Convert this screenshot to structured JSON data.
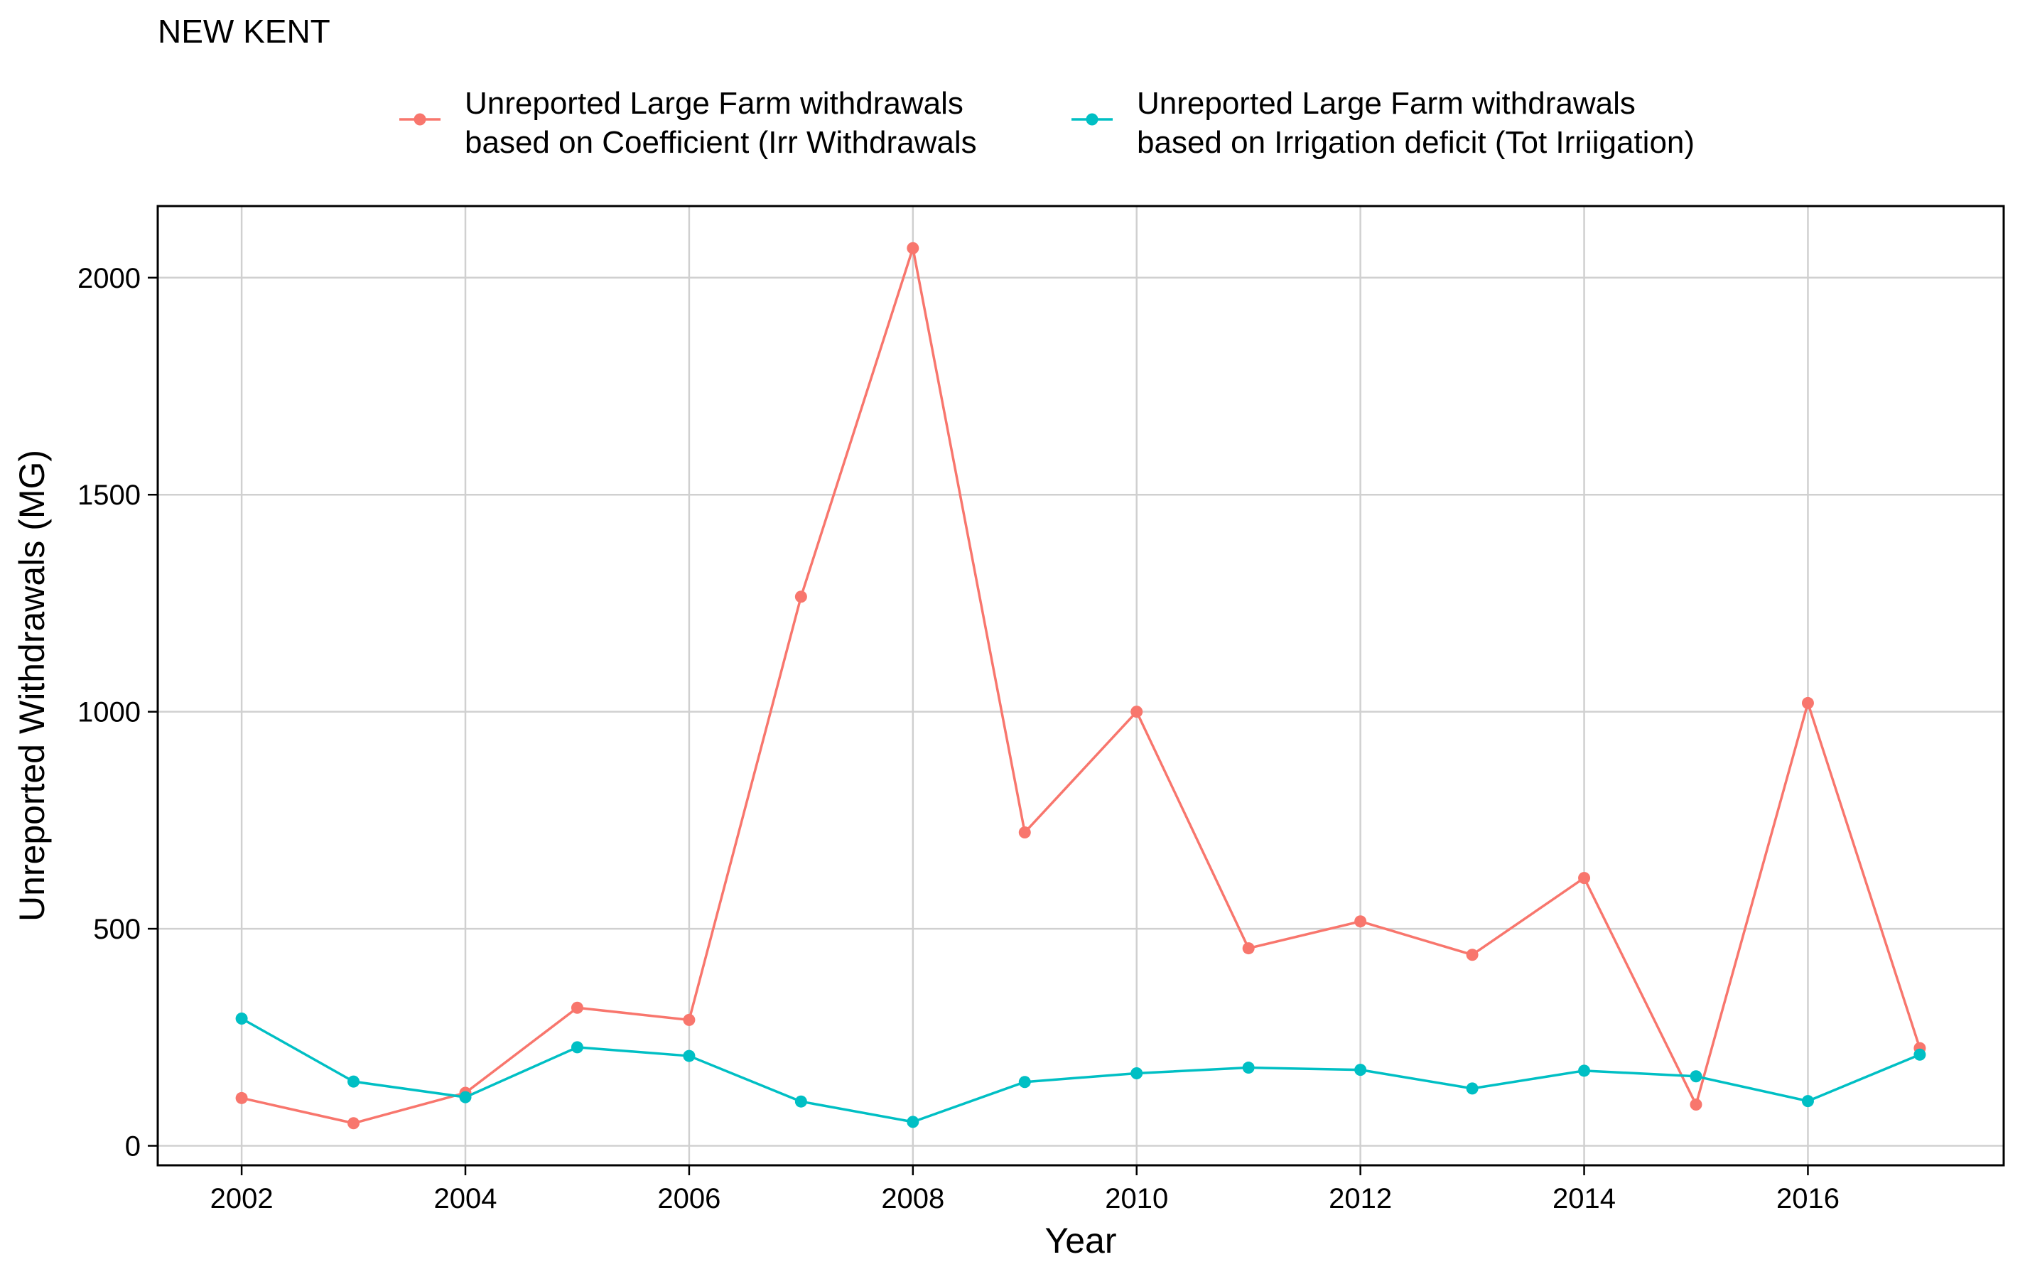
{
  "chart_data": {
    "type": "line",
    "title": "NEW KENT",
    "xlabel": "Year",
    "ylabel": "Unreported Withdrawals (MG)",
    "xlim": [
      2001.25,
      2017.75
    ],
    "ylim": [
      -45,
      2165
    ],
    "x_ticks": [
      2002,
      2004,
      2006,
      2008,
      2010,
      2012,
      2014,
      2016
    ],
    "y_ticks": [
      0,
      500,
      1000,
      1500,
      2000
    ],
    "x_tick_labels": [
      "2002",
      "2004",
      "2006",
      "2008",
      "2010",
      "2012",
      "2014",
      "2016"
    ],
    "y_tick_labels": [
      "0",
      "500",
      "1000",
      "1500",
      "2000"
    ],
    "grid": true,
    "legend_position": "top",
    "x": [
      2002,
      2003,
      2004,
      2005,
      2006,
      2007,
      2008,
      2009,
      2010,
      2011,
      2012,
      2013,
      2014,
      2015,
      2016,
      2017
    ],
    "series": [
      {
        "name": "Unreported Large Farm withdrawals\nbased on Coefficient (Irr Withdrawals",
        "color": "#F8766D",
        "values": [
          110,
          52,
          122,
          318,
          290,
          1265,
          2068,
          722,
          1000,
          455,
          517,
          440,
          617,
          95,
          1020,
          225
        ]
      },
      {
        "name": "Unreported Large Farm withdrawals\nbased on Irrigation deficit (Tot Irriigation)",
        "color": "#00BFC4",
        "values": [
          293,
          148,
          112,
          227,
          207,
          102,
          55,
          147,
          167,
          180,
          175,
          132,
          173,
          160,
          103,
          210
        ]
      }
    ]
  }
}
